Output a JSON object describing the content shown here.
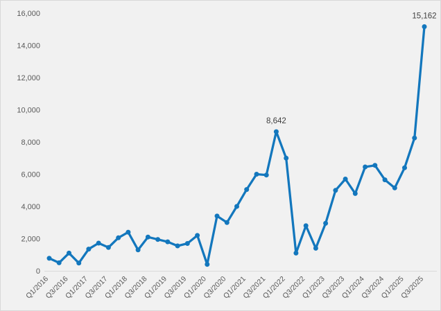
{
  "chart": {
    "background_color": "#f1f1f1",
    "border_color": "#d8d8d8",
    "line_color": "#1377bd",
    "marker_color": "#1377bd",
    "axis_line_color": "#d9d9d9",
    "tick_label_color": "#595959",
    "data_label_color": "#404040"
  },
  "chart_data": {
    "type": "line",
    "title": "",
    "xlabel": "",
    "ylabel": "",
    "grid": false,
    "legend": false,
    "ylim": [
      0,
      16000
    ],
    "y_ticks": [
      0,
      2000,
      4000,
      6000,
      8000,
      10000,
      12000,
      14000,
      16000
    ],
    "y_tick_labels": [
      "0",
      "2,000",
      "4,000",
      "6,000",
      "8,000",
      "10,000",
      "12,000",
      "14,000",
      "16,000"
    ],
    "x": [
      "Q1/2016",
      "Q2/2016",
      "Q3/2016",
      "Q4/2016",
      "Q1/2017",
      "Q2/2017",
      "Q3/2017",
      "Q4/2017",
      "Q1/2018",
      "Q2/2018",
      "Q3/2018",
      "Q4/2018",
      "Q1/2019",
      "Q2/2019",
      "Q3/2019",
      "Q4/2019",
      "Q1/2020",
      "Q2/2020",
      "Q3/2020",
      "Q4/2020",
      "Q1/2021",
      "Q2/2021",
      "Q3/2021",
      "Q4/2021",
      "Q1/2022",
      "Q2/2022",
      "Q3/2022",
      "Q4/2022",
      "Q1/2023",
      "Q2/2023",
      "Q3/2023",
      "Q4/2023",
      "Q1/2024",
      "Q2/2024",
      "Q3/2024",
      "Q4/2024",
      "Q1/2025",
      "Q2/2025",
      "Q3/2025"
    ],
    "x_tick_labels": [
      "Q1/2016",
      "Q3/2016",
      "Q1/2017",
      "Q3/2017",
      "Q1/2018",
      "Q3/2018",
      "Q1/2019",
      "Q3/2019",
      "Q1/2020",
      "Q3/2020",
      "Q1/2021",
      "Q3/2021",
      "Q1/2022",
      "Q3/2022",
      "Q1/2023",
      "Q3/2023",
      "Q1/2024",
      "Q3/2024",
      "Q1/2025",
      "Q3/2025"
    ],
    "x_tick_label_step": 2,
    "values": [
      780,
      500,
      1100,
      480,
      1350,
      1720,
      1450,
      2050,
      2400,
      1300,
      2100,
      1950,
      1800,
      1550,
      1700,
      2200,
      400,
      3400,
      3000,
      4000,
      5050,
      6000,
      5950,
      8642,
      7000,
      1100,
      2800,
      1400,
      2950,
      5000,
      5700,
      4800,
      6450,
      6550,
      5650,
      5150,
      6400,
      8250,
      15162
    ],
    "annotations": [
      {
        "index": 23,
        "text": "8,642"
      },
      {
        "index": 38,
        "text": "15,162"
      }
    ]
  }
}
